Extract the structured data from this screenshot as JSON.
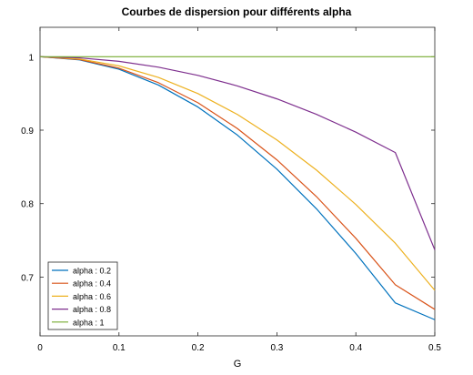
{
  "chart_data": {
    "type": "line",
    "title": "Courbes de dispersion pour différents alpha",
    "xlabel": "G",
    "ylabel": "",
    "xlim": [
      0,
      0.5
    ],
    "ylim": [
      0.62,
      1.04
    ],
    "xticks": [
      0,
      0.1,
      0.2,
      0.3,
      0.4,
      0.5
    ],
    "xtick_labels": [
      "0",
      "0.1",
      "0.2",
      "0.3",
      "0.4",
      "0.5"
    ],
    "yticks": [
      0.7,
      0.8,
      0.9,
      1
    ],
    "ytick_labels": [
      "0.7",
      "0.8",
      "0.9",
      "1"
    ],
    "grid": false,
    "legend_position": "bottom-left",
    "x": [
      0,
      0.05,
      0.1,
      0.15,
      0.2,
      0.25,
      0.3,
      0.35,
      0.4,
      0.45,
      0.5
    ],
    "series": [
      {
        "name": "alpha : 0.2",
        "color": "#0072bd",
        "values": [
          1.0,
          0.9957,
          0.9829,
          0.9614,
          0.9315,
          0.8933,
          0.847,
          0.7931,
          0.7321,
          0.6648,
          0.642
        ]
      },
      {
        "name": "alpha : 0.4",
        "color": "#d95319",
        "values": [
          1.0,
          0.9961,
          0.9844,
          0.9646,
          0.9373,
          0.9022,
          0.8596,
          0.8097,
          0.7528,
          0.6895,
          0.656
        ]
      },
      {
        "name": "alpha : 0.6",
        "color": "#edb120",
        "values": [
          1.0,
          0.9969,
          0.9875,
          0.9718,
          0.9498,
          0.9214,
          0.8867,
          0.8458,
          0.7988,
          0.7461,
          0.682
        ]
      },
      {
        "name": "alpha : 0.8",
        "color": "#7e2f8e",
        "values": [
          1.0,
          0.9984,
          0.9937,
          0.9857,
          0.9746,
          0.9602,
          0.9426,
          0.9216,
          0.8973,
          0.8695,
          0.737
        ]
      },
      {
        "name": "alpha : 1",
        "color": "#77ac30",
        "values": [
          1,
          1,
          1,
          1,
          1,
          1,
          1,
          1,
          1,
          1,
          1
        ]
      }
    ]
  }
}
